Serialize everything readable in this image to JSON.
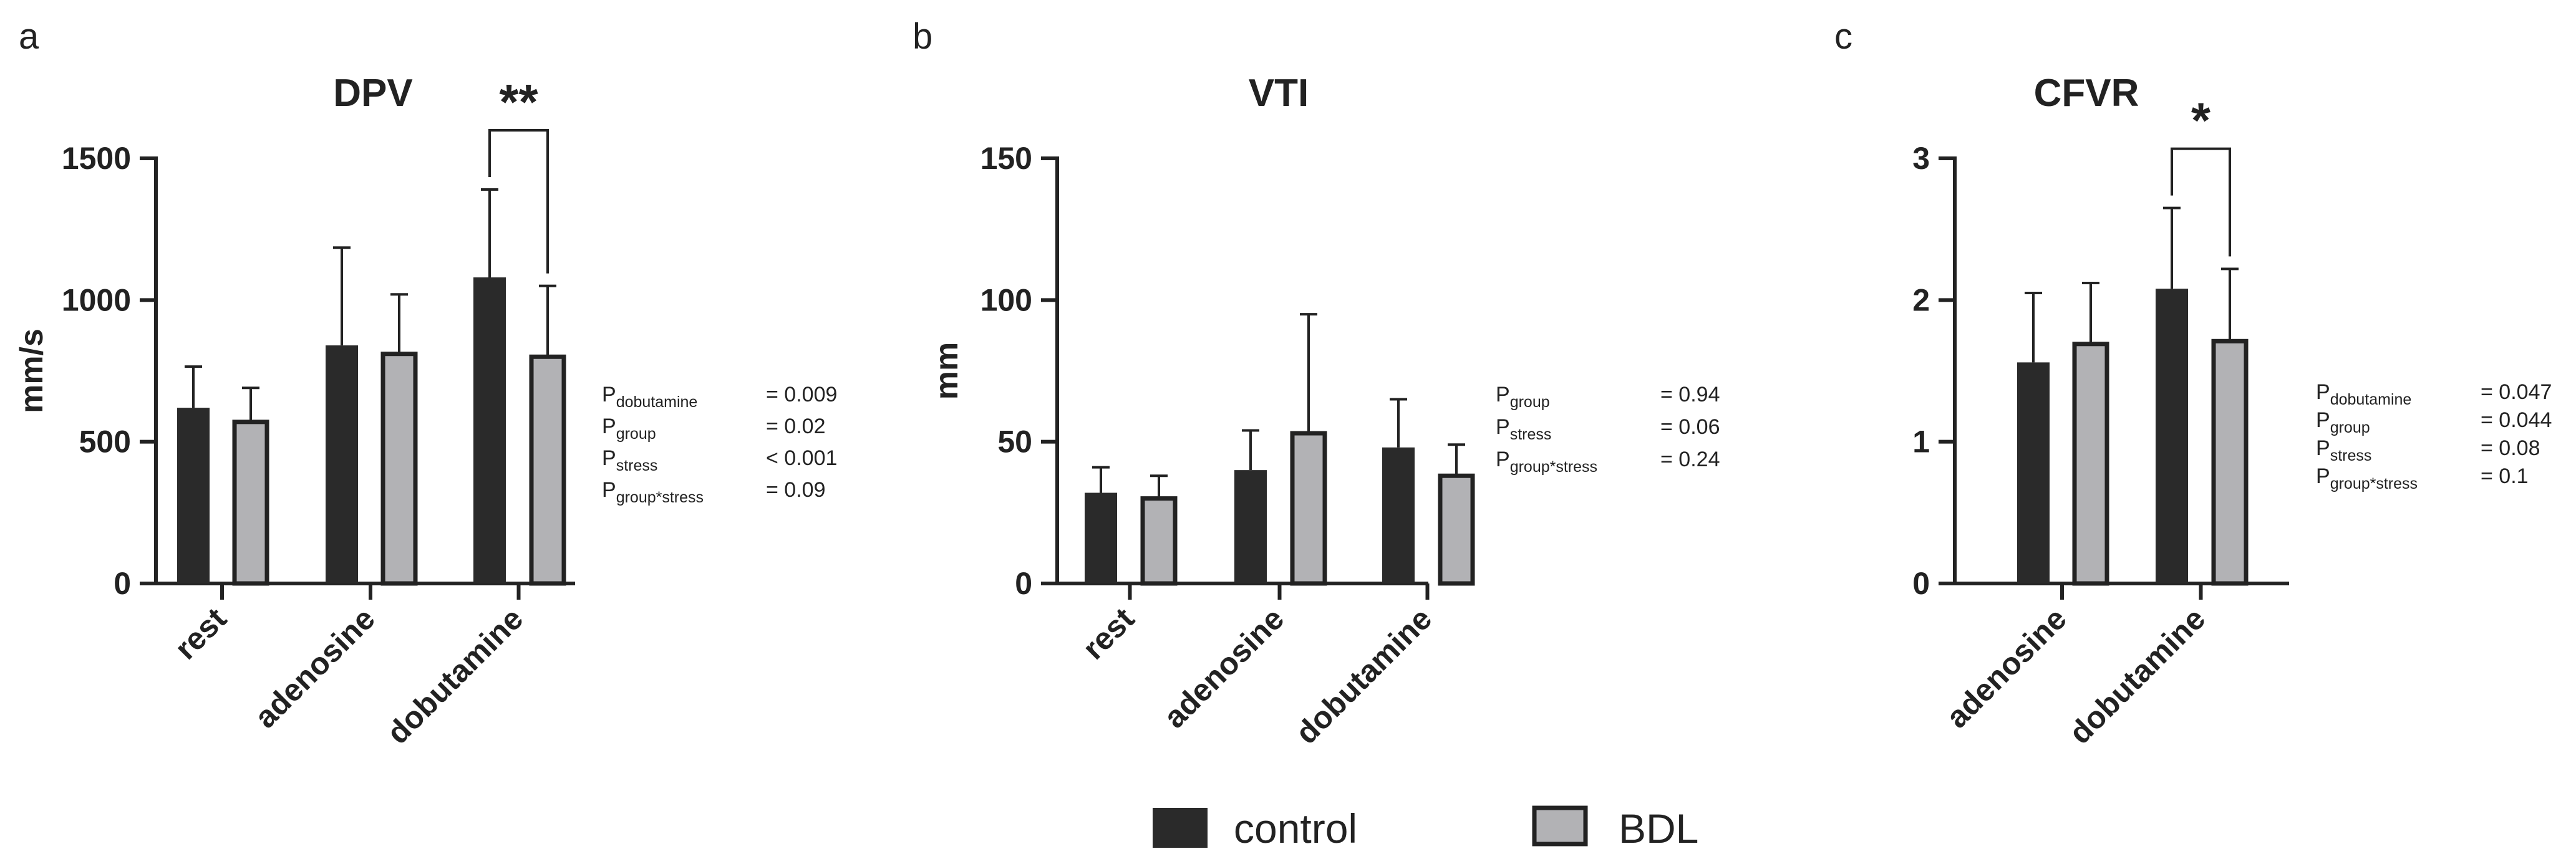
{
  "chart_data": [
    {
      "type": "bar",
      "panel": "a",
      "title": "DPV",
      "xlabel": "",
      "ylabel": "mm/s",
      "ylim": [
        0,
        1500
      ],
      "yticks": [
        0,
        500,
        1000,
        1500
      ],
      "categories": [
        "rest",
        "adenosine",
        "dobutamine"
      ],
      "series": [
        {
          "name": "control",
          "values": [
            620,
            840,
            1080
          ],
          "errors": [
            145,
            345,
            310
          ]
        },
        {
          "name": "BDL",
          "values": [
            570,
            810,
            800
          ],
          "errors": [
            120,
            210,
            250
          ]
        }
      ],
      "significance": [
        {
          "category": "dobutamine",
          "label": "**"
        }
      ],
      "stats": [
        {
          "name": "P",
          "sub": "dobutamine",
          "value": "= 0.009"
        },
        {
          "name": "P",
          "sub": "group",
          "value": "= 0.02"
        },
        {
          "name": "P",
          "sub": "stress",
          "value": "< 0.001"
        },
        {
          "name": "P",
          "sub": "group*stress",
          "value": "= 0.09"
        }
      ]
    },
    {
      "type": "bar",
      "panel": "b",
      "title": "VTI",
      "xlabel": "",
      "ylabel": "mm",
      "ylim": [
        0,
        150
      ],
      "yticks": [
        0,
        50,
        100,
        150
      ],
      "categories": [
        "rest",
        "adenosine",
        "dobutamine"
      ],
      "series": [
        {
          "name": "control",
          "values": [
            32,
            40,
            48
          ],
          "errors": [
            9,
            14,
            17
          ]
        },
        {
          "name": "BDL",
          "values": [
            30,
            53,
            38
          ],
          "errors": [
            8,
            42,
            11
          ]
        }
      ],
      "significance": [],
      "stats": [
        {
          "name": "P",
          "sub": "group",
          "value": "= 0.94"
        },
        {
          "name": "P",
          "sub": "stress",
          "value": "= 0.06"
        },
        {
          "name": "P",
          "sub": "group*stress",
          "value": "= 0.24"
        }
      ]
    },
    {
      "type": "bar",
      "panel": "c",
      "title": "CFVR",
      "xlabel": "",
      "ylabel": "",
      "ylim": [
        0,
        3
      ],
      "yticks": [
        0,
        1,
        2,
        3
      ],
      "categories": [
        "adenosine",
        "dobutamine"
      ],
      "series": [
        {
          "name": "control",
          "values": [
            1.56,
            2.08
          ],
          "errors": [
            0.49,
            0.57
          ]
        },
        {
          "name": "BDL",
          "values": [
            1.69,
            1.71
          ],
          "errors": [
            0.43,
            0.51
          ]
        }
      ],
      "significance": [
        {
          "category": "dobutamine",
          "label": "*"
        }
      ],
      "stats": [
        {
          "name": "P",
          "sub": "dobutamine",
          "value": "= 0.047"
        },
        {
          "name": "P",
          "sub": "group",
          "value": "= 0.044"
        },
        {
          "name": "P",
          "sub": "stress",
          "value": "= 0.08"
        },
        {
          "name": "P",
          "sub": "group*stress",
          "value": "= 0.1"
        }
      ]
    }
  ],
  "legend": [
    {
      "name": "control",
      "color": "#2a2a2a"
    },
    {
      "name": "BDL",
      "color": "#b2b2b5"
    }
  ],
  "colors": {
    "control": "#2a2a2a",
    "bdl": "#b2b2b5",
    "stroke": "#222222"
  }
}
